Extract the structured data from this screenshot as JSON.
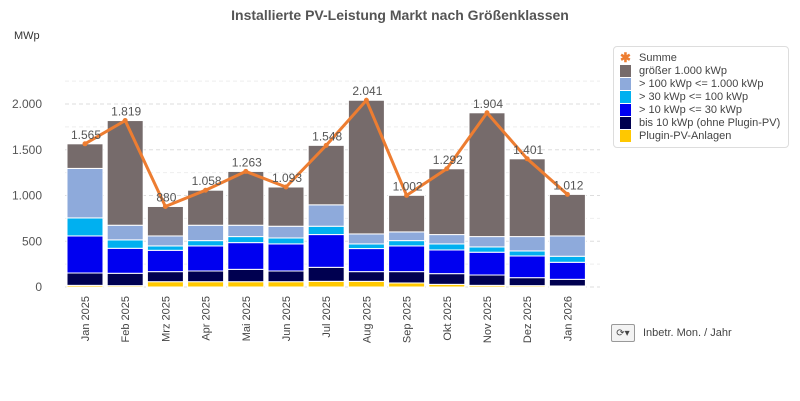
{
  "chart_data": {
    "type": "bar",
    "stacked": true,
    "title": "Installierte PV-Leistung Markt nach Größenklassen",
    "ylabel": "MWp",
    "xlabel": "Inbetr. Mon. / Jahr",
    "ylim": [
      0,
      2000
    ],
    "yticks": [
      0,
      500,
      1000,
      1500,
      2000
    ],
    "ytick_labels": [
      "0",
      "500",
      "1.000",
      "1.500",
      "2.000"
    ],
    "grid": true,
    "legend_position": "right",
    "categories": [
      "Jan 2025",
      "Feb 2025",
      "Mrz 2025",
      "Apr 2025",
      "Mai 2025",
      "Jun 2025",
      "Jul 2025",
      "Aug 2025",
      "Sep 2025",
      "Okt 2025",
      "Nov 2025",
      "Dez 2025",
      "Jan 2026"
    ],
    "series": [
      {
        "name": "Plugin-PV-Anlagen",
        "color": "#FFC800",
        "values": [
          18,
          15,
          58,
          58,
          58,
          58,
          62,
          62,
          44,
          29,
          18,
          15,
          11
        ]
      },
      {
        "name": "bis 10 kWp (ohne Plugin-PV)",
        "color": "#000050",
        "values": [
          135,
          135,
          110,
          117,
          135,
          117,
          153,
          106,
          124,
          117,
          113,
          87,
          73
        ]
      },
      {
        "name": "> 10 kWp <= 30 kWp",
        "color": "#0000F0",
        "values": [
          405,
          273,
          233,
          274,
          292,
          296,
          358,
          252,
          281,
          259,
          249,
          237,
          186
        ]
      },
      {
        "name": "> 30 kWp <= 100 kWp",
        "color": "#00B0F0",
        "values": [
          197,
          92,
          48,
          58,
          66,
          65,
          91,
          51,
          58,
          66,
          58,
          55,
          66
        ]
      },
      {
        "name": "> 100 kWp <= 1.000 kWp",
        "color": "#8EAADB",
        "values": [
          541,
          160,
          109,
          168,
          124,
          128,
          234,
          109,
          95,
          102,
          113,
          157,
          222
        ]
      },
      {
        "name": "größer 1.000 kWp",
        "color": "#766B6B",
        "values": [
          269,
          1144,
          322,
          383,
          588,
          429,
          650,
          1461,
          400,
          719,
          1353,
          850,
          454
        ]
      }
    ],
    "line": {
      "name": "Summe",
      "color": "#ED7D31",
      "values": [
        1565,
        1819,
        880,
        1058,
        1263,
        1093,
        1548,
        2041,
        1002,
        1292,
        1904,
        1401,
        1012
      ],
      "labels": [
        "1.565",
        "1.819",
        "880",
        "1.058",
        "1.263",
        "1.093",
        "1.548",
        "2.041",
        "1.002",
        "1.292",
        "1.904",
        "1.401",
        "1.012"
      ]
    }
  },
  "legend_order": [
    "Summe",
    "größer 1.000 kWp",
    "> 100 kWp <= 1.000 kWp",
    "> 30 kWp <= 100 kWp",
    "> 10 kWp <= 30 kWp",
    "bis 10 kWp (ohne Plugin-PV)",
    "Plugin-PV-Anlagen"
  ],
  "controls": {
    "xaxis_selector_icon": "swap-dropdown-icon"
  }
}
